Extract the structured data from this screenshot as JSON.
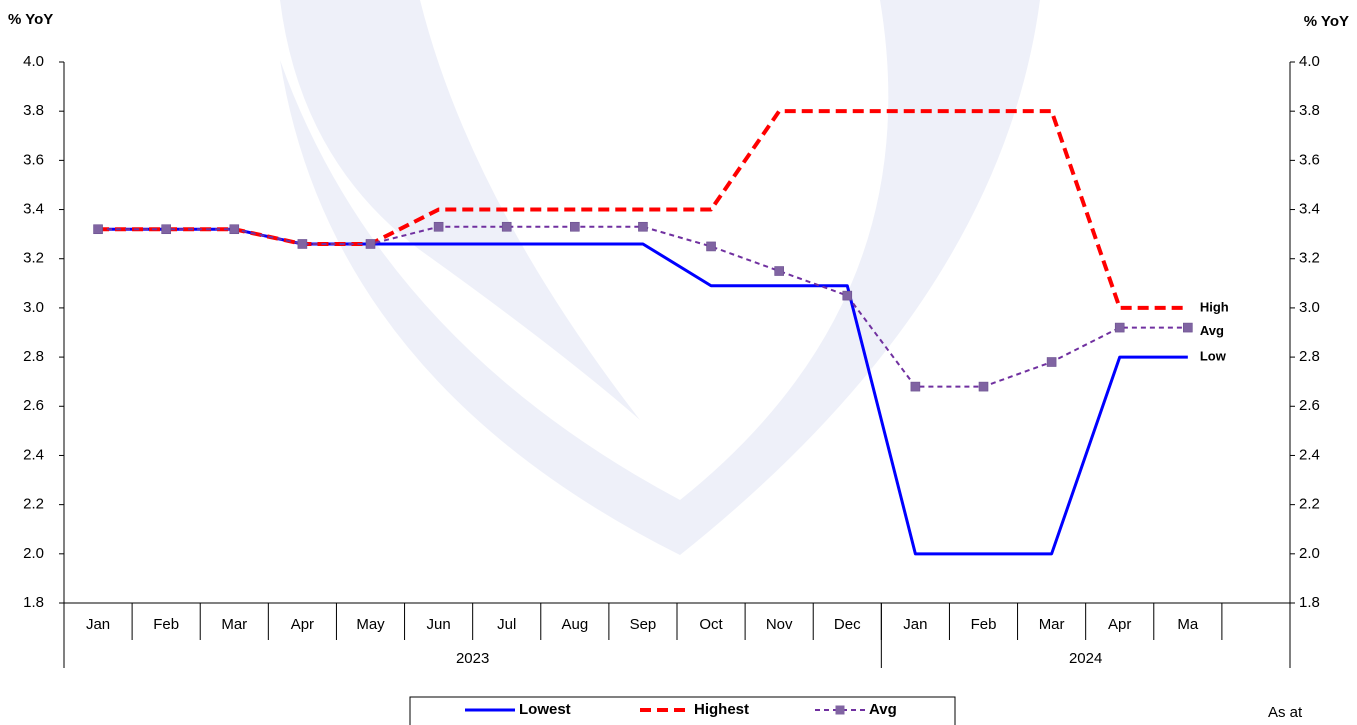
{
  "chart_data": {
    "type": "line",
    "y_axis_label": "% YoY",
    "y2_axis_label": "% YoY",
    "categories": [
      "Jan",
      "Feb",
      "Mar",
      "Apr",
      "May",
      "Jun",
      "Jul",
      "Aug",
      "Sep",
      "Oct",
      "Nov",
      "Dec",
      "Jan",
      "Feb",
      "Mar",
      "Apr",
      "Ma",
      null
    ],
    "groups": [
      {
        "label": "2023",
        "span": 12
      },
      {
        "label": "2024",
        "span": 6
      }
    ],
    "series": [
      {
        "name": "Lowest",
        "color": "#0000ff",
        "style": "solid",
        "end_label": "Low",
        "values": [
          3.32,
          3.32,
          3.32,
          3.26,
          3.26,
          3.26,
          3.26,
          3.26,
          3.26,
          3.09,
          3.09,
          3.09,
          2.0,
          2.0,
          2.0,
          2.8,
          2.8,
          null
        ]
      },
      {
        "name": "Highest",
        "color": "#ff0000",
        "style": "dashed",
        "end_label": "High",
        "values": [
          3.32,
          3.32,
          3.32,
          3.26,
          3.26,
          3.4,
          3.4,
          3.4,
          3.4,
          3.4,
          3.8,
          3.8,
          3.8,
          3.8,
          3.8,
          3.0,
          3.0,
          null
        ]
      },
      {
        "name": "Avg",
        "color": "#7030a0",
        "style": "dashed-marker",
        "end_label": "Avg",
        "values": [
          3.32,
          3.32,
          3.32,
          3.26,
          3.26,
          3.33,
          3.33,
          3.33,
          3.33,
          3.25,
          3.15,
          3.05,
          2.68,
          2.68,
          2.78,
          2.92,
          2.92,
          null
        ]
      }
    ],
    "ylim": [
      1.8,
      4.0
    ],
    "yticks": [
      1.8,
      {
        "value": 2,
        "label": "2.0"
      },
      2.2,
      2.4,
      2.6,
      2.8,
      {
        "value": 3,
        "label": "3.0"
      },
      3.2,
      3.4,
      3.6,
      3.8,
      {
        "value": 4,
        "label": "4.0"
      }
    ],
    "y2lim": [
      1.8,
      4.0
    ],
    "y2ticks": [
      1.8,
      {
        "value": 2,
        "label": "2.0"
      },
      2.2,
      2.4,
      2.6,
      2.8,
      {
        "value": 3,
        "label": "3.0"
      },
      3.2,
      3.4,
      3.6,
      3.8,
      {
        "value": 4,
        "label": "4.0"
      }
    ],
    "footnote": "As at"
  }
}
